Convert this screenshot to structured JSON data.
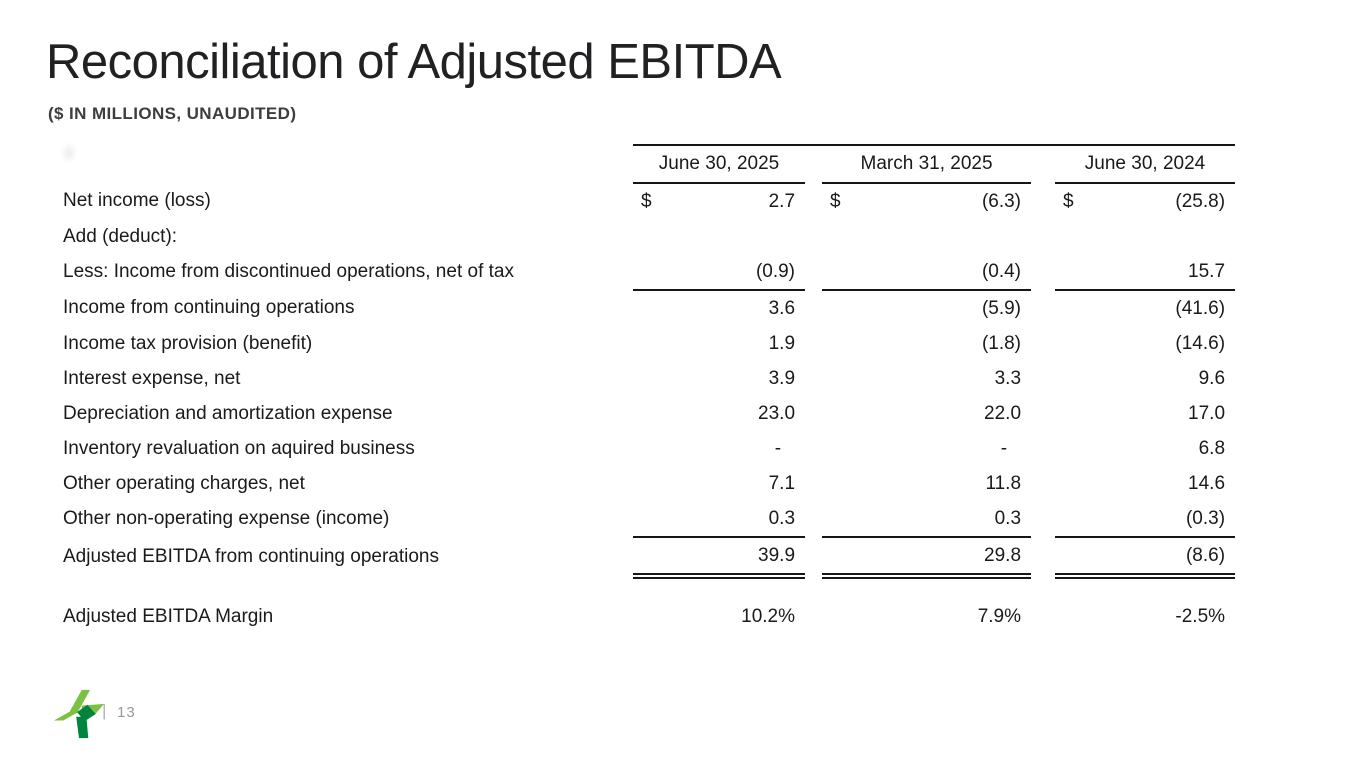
{
  "slide": {
    "title": "Reconciliation of Adjusted EBITDA",
    "subtitle": "($ IN MILLIONS, UNAUDITED)",
    "footer_divider": "|",
    "page_number": "13"
  },
  "colors": {
    "logo_light_green": "#7cc142",
    "logo_dark_green": "#00843d",
    "line_color": "#161616",
    "footer_gray": "#96989b"
  },
  "table": {
    "columns": [
      "June 30, 2025",
      "March 31, 2025",
      "June 30, 2024"
    ],
    "rows": [
      {
        "label": "Net income (loss)",
        "dollar": "$",
        "values": [
          "2.7",
          "(6.3)",
          "(25.8)"
        ],
        "style": "normal"
      },
      {
        "label": "Add (deduct):",
        "values": [
          "",
          "",
          ""
        ],
        "style": "normal"
      },
      {
        "label": "Less: Income from discontinued operations, net of tax",
        "values": [
          "(0.9)",
          "(0.4)",
          "15.7"
        ],
        "style": "underline"
      },
      {
        "label": "Income from continuing operations",
        "values": [
          "3.6",
          "(5.9)",
          "(41.6)"
        ],
        "style": "normal"
      },
      {
        "label": "Income tax provision (benefit)",
        "values": [
          "1.9",
          "(1.8)",
          "(14.6)"
        ],
        "style": "normal"
      },
      {
        "label": "Interest expense, net",
        "values": [
          "3.9",
          "3.3",
          "9.6"
        ],
        "style": "normal"
      },
      {
        "label": "Depreciation and amortization expense",
        "values": [
          "23.0",
          "22.0",
          "17.0"
        ],
        "style": "normal"
      },
      {
        "label": "Inventory revaluation on aquired business",
        "values": [
          "-",
          "-",
          "6.8"
        ],
        "style": "normal"
      },
      {
        "label": "Other operating charges, net",
        "values": [
          "7.1",
          "11.8",
          "14.6"
        ],
        "style": "normal"
      },
      {
        "label": "Other non-operating expense (income)",
        "values": [
          "0.3",
          "0.3",
          "(0.3)"
        ],
        "style": "underline"
      },
      {
        "label": "Adjusted EBITDA from continuing operations",
        "values": [
          "39.9",
          "29.8",
          "(8.6)"
        ],
        "style": "double-underline"
      },
      {
        "label": "",
        "values": [
          "",
          "",
          ""
        ],
        "style": "spacer"
      },
      {
        "label": "Adjusted EBITDA Margin",
        "values": [
          "10.2%",
          "7.9%",
          "-2.5%"
        ],
        "style": "normal"
      }
    ]
  }
}
